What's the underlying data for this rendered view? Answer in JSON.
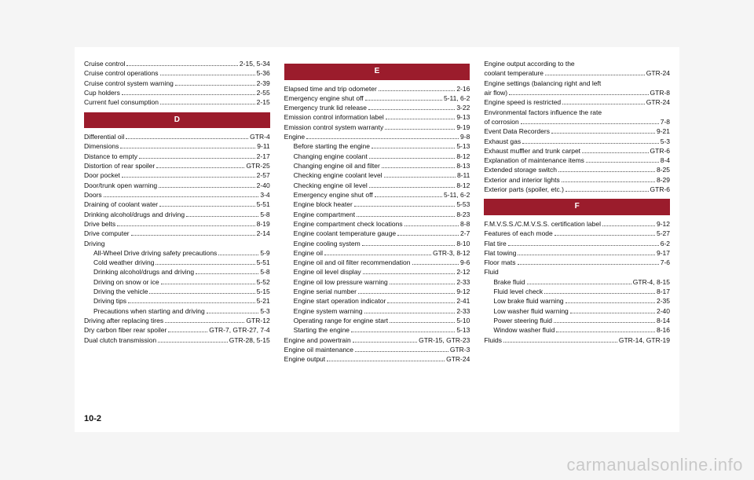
{
  "pageNumber": "10-2",
  "watermark": "carmanualsonline.info",
  "columns": [
    {
      "blocks": [
        {
          "type": "entries",
          "items": [
            {
              "label": "Cruise control",
              "page": "2-15, 5-34"
            },
            {
              "label": "Cruise control operations",
              "page": "5-36"
            },
            {
              "label": "Cruise control system warning",
              "page": "2-39"
            },
            {
              "label": "Cup holders",
              "page": "2-55"
            },
            {
              "label": "Current fuel consumption",
              "page": "2-15"
            }
          ]
        },
        {
          "type": "header",
          "text": "D"
        },
        {
          "type": "entries",
          "items": [
            {
              "label": "Differential oil",
              "page": "GTR-4"
            },
            {
              "label": "Dimensions",
              "page": "9-11"
            },
            {
              "label": "Distance to empty",
              "page": "2-17"
            },
            {
              "label": "Distortion of rear spoiler",
              "page": "GTR-25"
            },
            {
              "label": "Door pocket",
              "page": "2-57"
            },
            {
              "label": "Door/trunk open warning",
              "page": "2-40"
            },
            {
              "label": "Doors",
              "page": "3-4"
            },
            {
              "label": "Draining of coolant water",
              "page": "5-51"
            },
            {
              "label": "Drinking alcohol/drugs and driving",
              "page": "5-8"
            },
            {
              "label": "Drive belts",
              "page": "8-19"
            },
            {
              "label": "Drive computer",
              "page": "2-14"
            },
            {
              "label": "Driving",
              "page": ""
            },
            {
              "label": "All-Wheel Drive driving safety precautions",
              "page": "5-9",
              "sub": true
            },
            {
              "label": "Cold weather driving",
              "page": "5-51",
              "sub": true
            },
            {
              "label": "Drinking alcohol/drugs and driving",
              "page": "5-8",
              "sub": true
            },
            {
              "label": "Driving on snow or ice",
              "page": "5-52",
              "sub": true
            },
            {
              "label": "Driving the vehicle",
              "page": "5-15",
              "sub": true
            },
            {
              "label": "Driving tips",
              "page": "5-21",
              "sub": true
            },
            {
              "label": "Precautions when starting and driving",
              "page": "5-3",
              "sub": true
            },
            {
              "label": "Driving after replacing tires",
              "page": "GTR-12"
            },
            {
              "label": "Dry carbon fiber rear spoiler",
              "page": "GTR-7, GTR-27, 7-4"
            },
            {
              "label": "Dual clutch transmission",
              "page": "GTR-28, 5-15"
            }
          ]
        }
      ]
    },
    {
      "blocks": [
        {
          "type": "header",
          "text": "E"
        },
        {
          "type": "entries",
          "items": [
            {
              "label": "Elapsed time and trip odometer",
              "page": "2-16"
            },
            {
              "label": "Emergency engine shut off",
              "page": "5-11, 6-2"
            },
            {
              "label": "Emergency trunk lid release",
              "page": "3-22"
            },
            {
              "label": "Emission control information label",
              "page": "9-13"
            },
            {
              "label": "Emission control system warranty",
              "page": "9-19"
            },
            {
              "label": "Engine",
              "page": "9-8"
            },
            {
              "label": "Before starting the engine",
              "page": "5-13",
              "sub": true
            },
            {
              "label": "Changing engine coolant",
              "page": "8-12",
              "sub": true
            },
            {
              "label": "Changing engine oil and filter",
              "page": "8-13",
              "sub": true
            },
            {
              "label": "Checking engine coolant level",
              "page": "8-11",
              "sub": true
            },
            {
              "label": "Checking engine oil level",
              "page": "8-12",
              "sub": true
            },
            {
              "label": "Emergency engine shut off",
              "page": "5-11, 6-2",
              "sub": true
            },
            {
              "label": "Engine block heater",
              "page": "5-53",
              "sub": true
            },
            {
              "label": "Engine compartment",
              "page": "8-23",
              "sub": true
            },
            {
              "label": "Engine compartment check locations",
              "page": "8-8",
              "sub": true
            },
            {
              "label": "Engine coolant temperature gauge",
              "page": "2-7",
              "sub": true
            },
            {
              "label": "Engine cooling system",
              "page": "8-10",
              "sub": true
            },
            {
              "label": "Engine oil",
              "page": "GTR-3, 8-12",
              "sub": true
            },
            {
              "label": "Engine oil and oil filter recommendation",
              "page": "9-6",
              "sub": true
            },
            {
              "label": "Engine oil level display",
              "page": "2-12",
              "sub": true
            },
            {
              "label": "Engine oil low pressure warning",
              "page": "2-33",
              "sub": true
            },
            {
              "label": "Engine serial number",
              "page": "9-12",
              "sub": true
            },
            {
              "label": "Engine start operation indicator",
              "page": "2-41",
              "sub": true
            },
            {
              "label": "Engine system warning",
              "page": "2-33",
              "sub": true
            },
            {
              "label": "Operating range for engine start",
              "page": "5-10",
              "sub": true
            },
            {
              "label": "Starting the engine",
              "page": "5-13",
              "sub": true
            },
            {
              "label": "Engine and powertrain",
              "page": "GTR-15, GTR-23"
            },
            {
              "label": "Engine oil maintenance",
              "page": "GTR-3"
            },
            {
              "label": "Engine output",
              "page": "GTR-24"
            }
          ]
        }
      ]
    },
    {
      "blocks": [
        {
          "type": "entries",
          "items": [
            {
              "label": "Engine output according to the",
              "page": ""
            },
            {
              "label": "coolant temperature",
              "page": "GTR-24"
            },
            {
              "label": "Engine settings (balancing right and left",
              "page": ""
            },
            {
              "label": "air flow)",
              "page": "GTR-8"
            },
            {
              "label": "Engine speed is restricted",
              "page": "GTR-24"
            },
            {
              "label": "Environmental factors influence the rate",
              "page": ""
            },
            {
              "label": "of corrosion",
              "page": "7-8"
            },
            {
              "label": "Event Data Recorders",
              "page": "9-21"
            },
            {
              "label": "Exhaust gas",
              "page": "5-3"
            },
            {
              "label": "Exhaust muffler and trunk carpet",
              "page": "GTR-6"
            },
            {
              "label": "Explanation of maintenance items",
              "page": "8-4"
            },
            {
              "label": "Extended storage switch",
              "page": "8-25"
            },
            {
              "label": "Exterior and interior lights",
              "page": "8-29"
            },
            {
              "label": "Exterior parts (spoiler, etc.)",
              "page": "GTR-6"
            }
          ]
        },
        {
          "type": "header",
          "text": "F"
        },
        {
          "type": "entries",
          "items": [
            {
              "label": "F.M.V.S.S./C.M.V.S.S. certification label",
              "page": "9-12"
            },
            {
              "label": "Features of each mode",
              "page": "5-27"
            },
            {
              "label": "Flat tire",
              "page": "6-2"
            },
            {
              "label": "Flat towing",
              "page": "9-17"
            },
            {
              "label": "Floor mats",
              "page": "7-6"
            },
            {
              "label": "Fluid",
              "page": ""
            },
            {
              "label": "Brake fluid",
              "page": "GTR-4, 8-15",
              "sub": true
            },
            {
              "label": "Fluid level check",
              "page": "8-17",
              "sub": true
            },
            {
              "label": "Low brake fluid warning",
              "page": "2-35",
              "sub": true
            },
            {
              "label": "Low washer fluid warning",
              "page": "2-40",
              "sub": true
            },
            {
              "label": "Power steering fluid",
              "page": "8-14",
              "sub": true
            },
            {
              "label": "Window washer fluid",
              "page": "8-16",
              "sub": true
            },
            {
              "label": "Fluids",
              "page": "GTR-14, GTR-19"
            }
          ]
        }
      ]
    }
  ]
}
